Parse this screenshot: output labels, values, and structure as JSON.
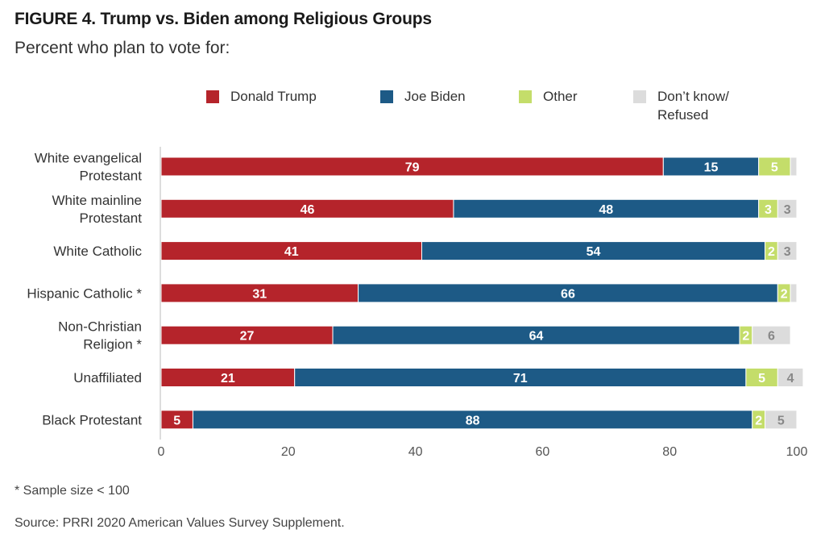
{
  "title": "FIGURE 4. Trump vs. Biden among Religious Groups",
  "subtitle": "Percent who plan to vote for:",
  "footnote": "* Sample size < 100",
  "source": "Source: PRRI 2020 American Values Survey Supplement.",
  "chart_data": {
    "type": "bar",
    "orientation": "horizontal",
    "stacked": true,
    "categories": [
      "White evangelical\nProtestant",
      "White mainline\nProtestant",
      "White Catholic",
      "Hispanic Catholic *",
      "Non-Christian\nReligion *",
      "Unaffiliated",
      "Black Protestant"
    ],
    "series": [
      {
        "name": "Donald Trump",
        "color": "#b5242b",
        "label_color": "#ffffff",
        "values": [
          79,
          46,
          41,
          31,
          27,
          21,
          5
        ]
      },
      {
        "name": "Joe Biden",
        "color": "#1d5a86",
        "label_color": "#ffffff",
        "values": [
          15,
          48,
          54,
          66,
          64,
          71,
          88
        ]
      },
      {
        "name": "Other",
        "color": "#c4dd6a",
        "label_color": "#ffffff",
        "values": [
          5,
          3,
          2,
          2,
          2,
          5,
          2
        ]
      },
      {
        "name": "Don’t know/\nRefused",
        "color": "#dcdcdc",
        "label_color": "#888888",
        "values": [
          1,
          3,
          3,
          1,
          6,
          4,
          5
        ]
      }
    ],
    "data_labels": [
      [
        "79",
        "46",
        "41",
        "31",
        "27",
        "21",
        "5"
      ],
      [
        "15",
        "48",
        "54",
        "66",
        "64",
        "71",
        "88"
      ],
      [
        "5",
        "3",
        "2",
        "2",
        "2",
        "5",
        "2"
      ],
      [
        "",
        "3",
        "3",
        "",
        "6",
        "4",
        "5"
      ]
    ],
    "xlim": [
      0,
      100
    ],
    "xticks": [
      0,
      20,
      40,
      60,
      80,
      100
    ],
    "legend_position": "top",
    "grid": false
  }
}
